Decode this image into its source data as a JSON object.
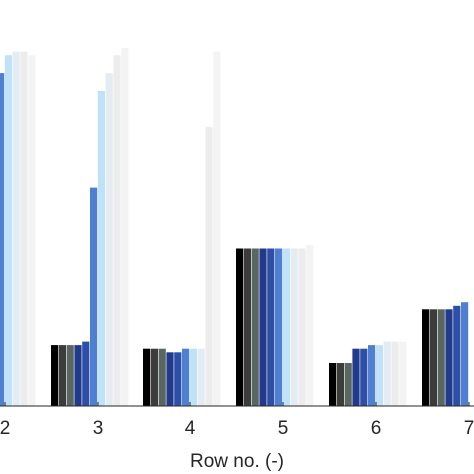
{
  "chart_data": {
    "type": "bar",
    "title": "",
    "xlabel": "Row no. (-)",
    "ylabel": "",
    "categories": [
      "2",
      "3",
      "4",
      "5",
      "6",
      "7"
    ],
    "ylim": [
      0,
      1
    ],
    "grid": false,
    "series": [
      {
        "color": "#000000",
        "values": [
          null,
          0.17,
          0.16,
          0.44,
          0.12,
          0.27
        ]
      },
      {
        "color": "#3c3c3c",
        "values": [
          null,
          0.17,
          0.16,
          0.44,
          0.12,
          0.27
        ]
      },
      {
        "color": "#5a6660",
        "values": [
          null,
          0.17,
          0.16,
          0.44,
          0.12,
          0.27
        ]
      },
      {
        "color": "#213a8c",
        "values": [
          null,
          0.17,
          0.15,
          0.44,
          0.16,
          0.27
        ]
      },
      {
        "color": "#2e4fa8",
        "values": [
          0.88,
          0.18,
          0.15,
          0.44,
          0.16,
          0.28
        ]
      },
      {
        "color": "#4f7fd1",
        "values": [
          0.93,
          0.61,
          0.16,
          0.44,
          0.17,
          0.29
        ]
      },
      {
        "color": "#bfe2f9",
        "values": [
          0.98,
          0.88,
          0.16,
          0.44,
          0.17,
          null
        ]
      },
      {
        "color": "#e4ecf3",
        "values": [
          0.99,
          0.93,
          0.16,
          0.44,
          0.18,
          null
        ]
      },
      {
        "color": "#ececec",
        "values": [
          0.99,
          0.98,
          0.78,
          0.44,
          0.18,
          null
        ]
      },
      {
        "color": "#f3f3f3",
        "values": [
          0.98,
          1.0,
          0.99,
          0.45,
          0.18,
          null
        ]
      }
    ]
  }
}
